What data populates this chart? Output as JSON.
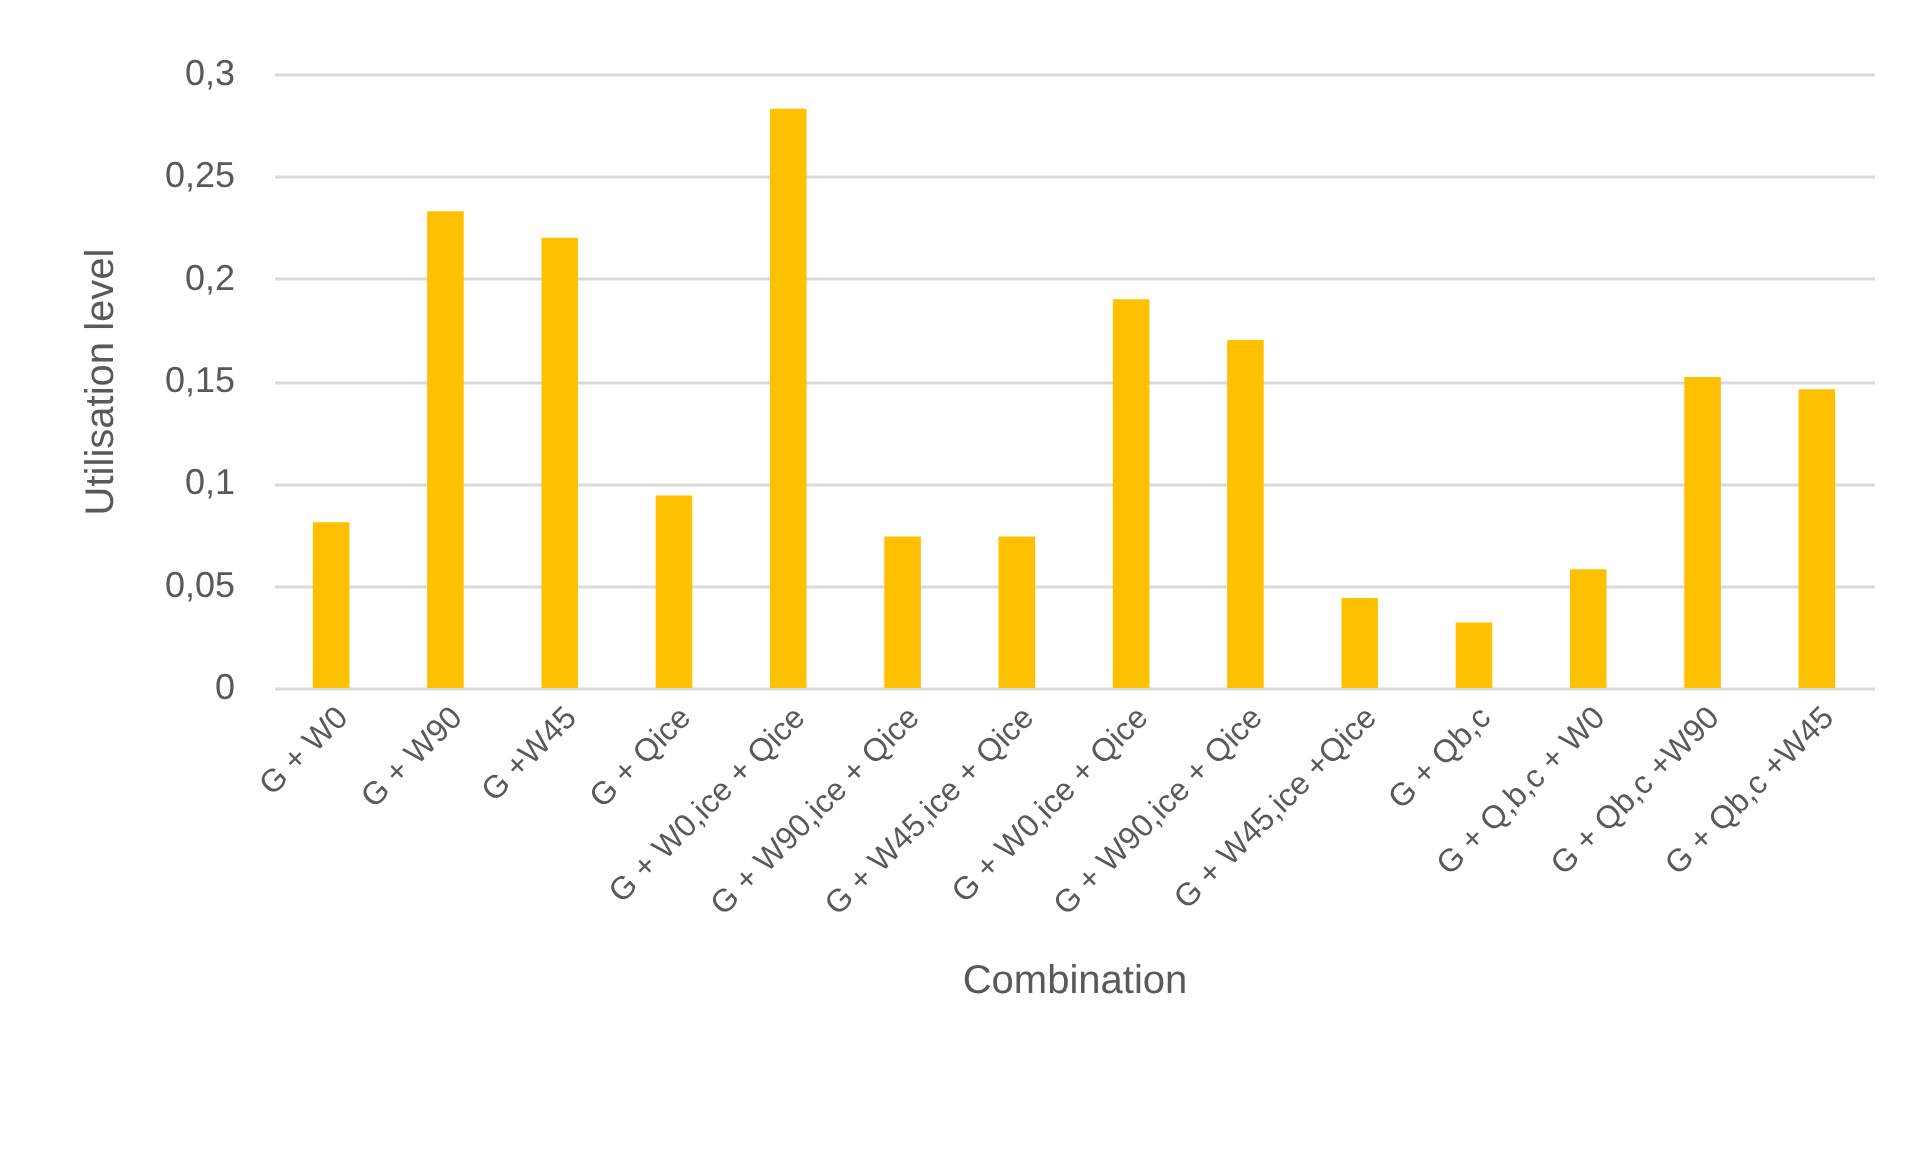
{
  "chart_data": {
    "type": "bar",
    "xlabel": "Combination",
    "ylabel": "Utilisation level",
    "categories": [
      "G + W0",
      "G + W90",
      "G +W45",
      "G + Qice",
      "G + W0,ice + Qice",
      "G + W90,ice + Qice",
      "G + W45,ice + Qice",
      "G + W0,ice + Qice",
      "G + W90,ice + Qice",
      "G + W45,ice +Qice",
      "G + Qb,c",
      "G + Q,b,c + W0",
      "G + Qb,c +W90",
      "G + Qb,c +W45"
    ],
    "values": [
      0.081,
      0.233,
      0.22,
      0.094,
      0.283,
      0.074,
      0.074,
      0.19,
      0.17,
      0.044,
      0.032,
      0.058,
      0.152,
      0.146
    ],
    "color": "#ffc000",
    "ylim": [
      0,
      0.3
    ],
    "yticks": [
      0,
      {
        "value": 0.05,
        "label": "0,05"
      },
      {
        "value": 0.1,
        "label": "0,1"
      },
      {
        "value": 0.15,
        "label": "0,15"
      },
      {
        "value": 0.2,
        "label": "0,2"
      },
      {
        "value": 0.25,
        "label": "0,25"
      },
      {
        "value": 0.3,
        "label": "0,3"
      }
    ],
    "grid": "y"
  }
}
